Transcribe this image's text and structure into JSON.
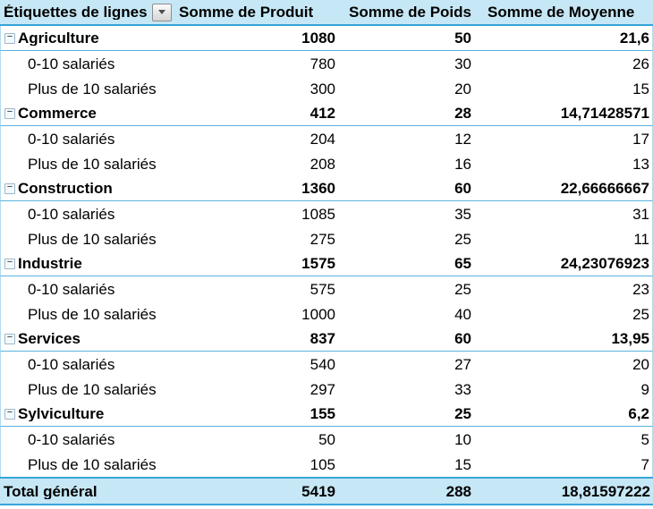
{
  "header": {
    "row_labels": "Étiquettes de lignes",
    "col_produit": "Somme de Produit",
    "col_poids": "Somme de Poids",
    "col_moyenne": "Somme de Moyenne"
  },
  "icons": {
    "filter_dropdown": "dropdown-arrow",
    "collapse_glyph": "−"
  },
  "colors": {
    "header_bg": "#c6e7f5",
    "rule_strong": "#36a4d8",
    "rule_light": "#58b3de",
    "edge_light": "#b3dcee"
  },
  "rows": [
    {
      "type": "category",
      "label": "Agriculture",
      "produit": "1080",
      "poids": "50",
      "moyenne": "21,6"
    },
    {
      "type": "detail",
      "label": "0-10 salariés",
      "produit": "780",
      "poids": "30",
      "moyenne": "26"
    },
    {
      "type": "detail",
      "label": "Plus de 10 salariés",
      "produit": "300",
      "poids": "20",
      "moyenne": "15"
    },
    {
      "type": "category",
      "label": "Commerce",
      "produit": "412",
      "poids": "28",
      "moyenne": "14,71428571"
    },
    {
      "type": "detail",
      "label": "0-10 salariés",
      "produit": "204",
      "poids": "12",
      "moyenne": "17"
    },
    {
      "type": "detail",
      "label": "Plus de 10 salariés",
      "produit": "208",
      "poids": "16",
      "moyenne": "13"
    },
    {
      "type": "category",
      "label": "Construction",
      "produit": "1360",
      "poids": "60",
      "moyenne": "22,66666667"
    },
    {
      "type": "detail",
      "label": "0-10 salariés",
      "produit": "1085",
      "poids": "35",
      "moyenne": "31"
    },
    {
      "type": "detail",
      "label": "Plus de 10 salariés",
      "produit": "275",
      "poids": "25",
      "moyenne": "11"
    },
    {
      "type": "category",
      "label": "Industrie",
      "produit": "1575",
      "poids": "65",
      "moyenne": "24,23076923"
    },
    {
      "type": "detail",
      "label": "0-10 salariés",
      "produit": "575",
      "poids": "25",
      "moyenne": "23"
    },
    {
      "type": "detail",
      "label": "Plus de 10 salariés",
      "produit": "1000",
      "poids": "40",
      "moyenne": "25"
    },
    {
      "type": "category",
      "label": "Services",
      "produit": "837",
      "poids": "60",
      "moyenne": "13,95"
    },
    {
      "type": "detail",
      "label": "0-10 salariés",
      "produit": "540",
      "poids": "27",
      "moyenne": "20"
    },
    {
      "type": "detail",
      "label": "Plus de 10 salariés",
      "produit": "297",
      "poids": "33",
      "moyenne": "9"
    },
    {
      "type": "category",
      "label": "Sylviculture",
      "produit": "155",
      "poids": "25",
      "moyenne": "6,2"
    },
    {
      "type": "detail",
      "label": "0-10 salariés",
      "produit": "50",
      "poids": "10",
      "moyenne": "5"
    },
    {
      "type": "detail",
      "label": "Plus de 10 salariés",
      "produit": "105",
      "poids": "15",
      "moyenne": "7"
    },
    {
      "type": "total",
      "label": "Total général",
      "produit": "5419",
      "poids": "288",
      "moyenne": "18,81597222"
    }
  ]
}
